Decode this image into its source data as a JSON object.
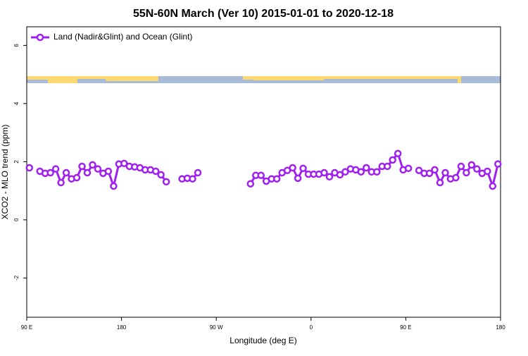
{
  "chart_data": {
    "type": "line",
    "title": "55N-60N March (Ver 10)   2015-01-01 to 2020-12-18",
    "x_label": "Longitude (deg E)",
    "y_label": "XCO2 - MLO trend (ppm)",
    "legend_position": "top-left",
    "xlim": [
      90,
      540
    ],
    "xticks": [
      {
        "value": 90,
        "label": "90 E"
      },
      {
        "value": 180,
        "label": "180"
      },
      {
        "value": 270,
        "label": "90 W"
      },
      {
        "value": 360,
        "label": "0"
      },
      {
        "value": 450,
        "label": "90 E"
      },
      {
        "value": 540,
        "label": "180"
      }
    ],
    "ylim": [
      -3.35,
      6.64
    ],
    "yticks": [
      -2,
      0,
      2,
      4,
      6
    ],
    "x": [
      92.5,
      97.5,
      102.5,
      107.5,
      112.5,
      117.5,
      122.5,
      127.5,
      132.5,
      137.5,
      142.5,
      147.5,
      152.5,
      157.5,
      162.5,
      167.5,
      172.5,
      177.5,
      182.5,
      187.5,
      192.5,
      197.5,
      202.5,
      207.5,
      212.5,
      217.5,
      222.5,
      227.5,
      232.5,
      237.5,
      242.5,
      247.5,
      252.5,
      257.5,
      262.5,
      267.5,
      272.5,
      277.5,
      282.5,
      287.5,
      292.5,
      297.5,
      302.5,
      307.5,
      312.5,
      317.5,
      322.5,
      327.5,
      332.5,
      337.5,
      342.5,
      347.5,
      352.5,
      357.5,
      362.5,
      367.5,
      372.5,
      377.5,
      382.5,
      387.5,
      392.5,
      397.5,
      402.5,
      407.5,
      412.5,
      417.5,
      422.5,
      427.5,
      432.5,
      437.5,
      442.5,
      447.5,
      452.5,
      457.5,
      462.5,
      467.5,
      472.5,
      477.5,
      482.5,
      487.5,
      492.5,
      497.5,
      502.5,
      507.5,
      512.5,
      517.5,
      522.5,
      527.5,
      532.5,
      537.5
    ],
    "series": [
      {
        "name": "Land (Nadir&Glint) and Ocean (Glint)",
        "color": "#a020f0",
        "values": [
          1.79,
          null,
          1.67,
          1.6,
          1.62,
          1.75,
          1.28,
          1.62,
          1.41,
          1.45,
          1.84,
          1.62,
          1.89,
          1.75,
          1.6,
          1.67,
          1.16,
          1.92,
          1.94,
          1.84,
          1.82,
          1.79,
          1.72,
          1.72,
          1.67,
          1.55,
          1.31,
          null,
          null,
          1.41,
          1.43,
          1.41,
          1.62,
          null,
          null,
          null,
          null,
          null,
          null,
          null,
          null,
          null,
          1.24,
          1.53,
          1.53,
          1.33,
          1.41,
          1.41,
          1.62,
          1.7,
          1.79,
          1.43,
          1.77,
          1.57,
          1.57,
          1.57,
          1.62,
          1.48,
          1.62,
          1.55,
          1.65,
          1.75,
          1.72,
          1.65,
          1.79,
          1.65,
          1.65,
          1.84,
          1.84,
          2.06,
          2.28,
          1.72,
          1.77,
          null,
          1.7,
          1.6,
          1.6,
          1.72,
          1.28,
          1.62,
          1.41,
          1.45,
          1.84,
          1.62,
          1.89,
          1.75,
          1.6,
          1.67,
          1.16,
          1.92
        ]
      }
    ]
  }
}
